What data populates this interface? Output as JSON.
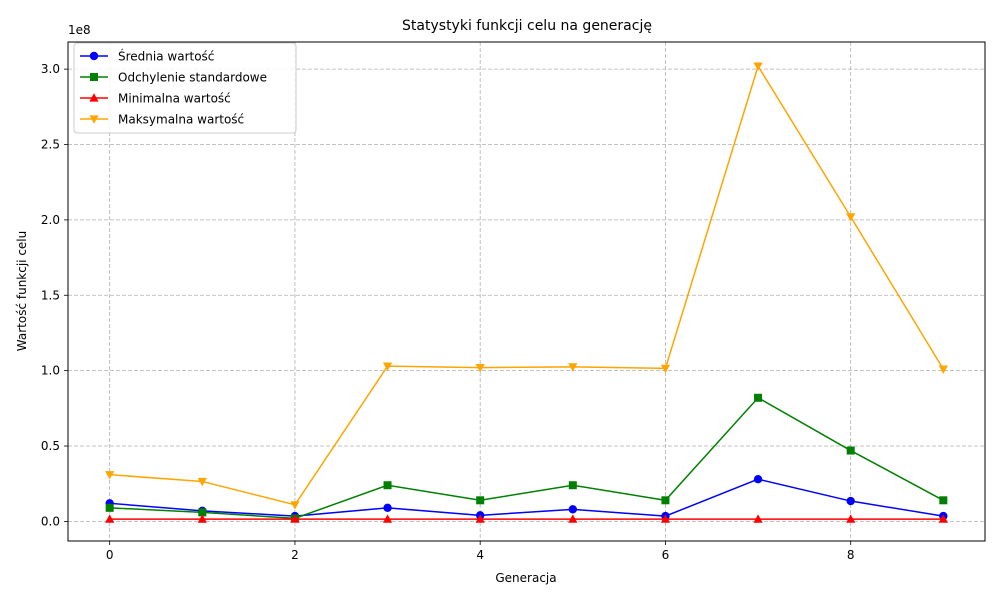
{
  "chart_data": {
    "type": "line",
    "title": "Statystyki funkcji celu na generację",
    "xlabel": "Generacja",
    "ylabel": "Wartość funkcji celu",
    "y_offset_text": "1e8",
    "x": [
      0,
      1,
      2,
      3,
      4,
      5,
      6,
      7,
      8,
      9
    ],
    "xlim": [
      -0.45,
      9.45
    ],
    "ylim": [
      -0.13,
      3.18
    ],
    "x_ticks": [
      0,
      2,
      4,
      6,
      8
    ],
    "y_ticks": [
      0.0,
      0.5,
      1.0,
      1.5,
      2.0,
      2.5,
      3.0
    ],
    "y_tick_labels": [
      "0.0",
      "0.5",
      "1.0",
      "1.5",
      "2.0",
      "2.5",
      "3.0"
    ],
    "grid": true,
    "legend_position": "upper-left",
    "series": [
      {
        "name": "Średnia wartość",
        "color": "#0000ff",
        "marker": "circle",
        "values": [
          0.12,
          0.07,
          0.035,
          0.09,
          0.04,
          0.08,
          0.035,
          0.28,
          0.135,
          0.035
        ]
      },
      {
        "name": "Odchylenie standardowe",
        "color": "#008000",
        "marker": "square",
        "values": [
          0.09,
          0.06,
          0.02,
          0.24,
          0.14,
          0.24,
          0.14,
          0.82,
          0.47,
          0.14
        ]
      },
      {
        "name": "Minimalna wartość",
        "color": "#ff0000",
        "marker": "triangle-up",
        "values": [
          0.015,
          0.015,
          0.015,
          0.015,
          0.015,
          0.015,
          0.015,
          0.015,
          0.015,
          0.015
        ]
      },
      {
        "name": "Maksymalna wartość",
        "color": "#ffa500",
        "marker": "triangle-down",
        "values": [
          0.31,
          0.265,
          0.11,
          1.03,
          1.02,
          1.025,
          1.015,
          3.02,
          2.02,
          1.01
        ]
      }
    ]
  }
}
